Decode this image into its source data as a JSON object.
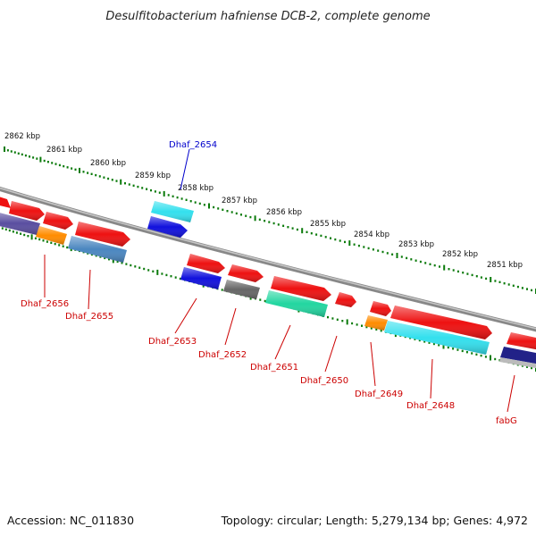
{
  "title": "Desulfitobacterium hafniense DCB-2, complete genome",
  "footer": {
    "accession": "Accession: NC_011830",
    "topology": "Topology: circular; Length: 5,279,134 bp; Genes: 4,972"
  },
  "ticks": [
    {
      "label": "2862 kbp"
    },
    {
      "label": "2861 kbp"
    },
    {
      "label": "2860 kbp"
    },
    {
      "label": "2859 kbp"
    },
    {
      "label": "2858 kbp"
    },
    {
      "label": "2857 kbp"
    },
    {
      "label": "2856 kbp"
    },
    {
      "label": "2855 kbp"
    },
    {
      "label": "2854 kbp"
    },
    {
      "label": "2853 kbp"
    },
    {
      "label": "2852 kbp"
    },
    {
      "label": "2851 kbp"
    }
  ],
  "colors": {
    "red": "#ee1111",
    "cyan": "#33e0ee",
    "blue": "#1111dd",
    "purple": "#5a4ea0",
    "orange": "#ff8c00",
    "steel": "#4a86c0",
    "gray": "#666666",
    "teal": "#22d6a0",
    "navy": "#222288",
    "silver": "#bbbbbb",
    "tick": "#0a7a0a",
    "label_red": "#cc0000",
    "label_blue": "#0000cc"
  },
  "genes": [
    {
      "name": "Dhaf_2654",
      "color": "blue"
    },
    {
      "name": "Dhaf_2656",
      "color": "red"
    },
    {
      "name": "Dhaf_2655",
      "color": "red"
    },
    {
      "name": "Dhaf_2653",
      "color": "red"
    },
    {
      "name": "Dhaf_2652",
      "color": "red"
    },
    {
      "name": "Dhaf_2651",
      "color": "red"
    },
    {
      "name": "Dhaf_2650",
      "color": "red"
    },
    {
      "name": "Dhaf_2649",
      "color": "red"
    },
    {
      "name": "Dhaf_2648",
      "color": "red"
    },
    {
      "name": "fabG",
      "color": "red"
    }
  ]
}
